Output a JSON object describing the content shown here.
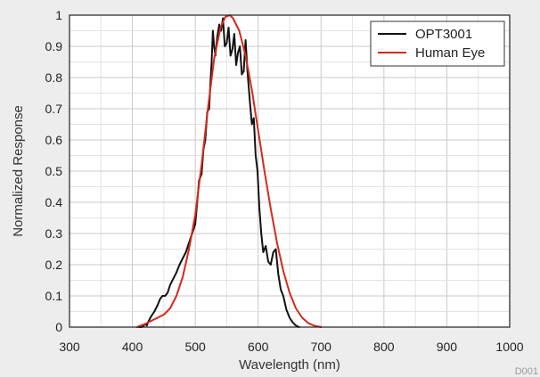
{
  "figure_id": "D001",
  "chart_data": {
    "type": "line",
    "title": "",
    "xlabel": "Wavelength (nm)",
    "ylabel": "Normalized Response",
    "xlim": [
      300,
      1000
    ],
    "ylim": [
      0,
      1
    ],
    "x_ticks": [
      300,
      400,
      500,
      600,
      700,
      800,
      900,
      1000
    ],
    "y_ticks": [
      0,
      0.1,
      0.2,
      0.3,
      0.4,
      0.5,
      0.6,
      0.7,
      0.8,
      0.9,
      1
    ],
    "x_minor_step": 50,
    "y_minor_step": 0.05,
    "grid": true,
    "legend_position": "top-right",
    "series": [
      {
        "name": "OPT3001",
        "color": "#111111",
        "points": [
          [
            410,
            0
          ],
          [
            415,
            0
          ],
          [
            418,
            0.005
          ],
          [
            420,
            0.01
          ],
          [
            423,
            0.005
          ],
          [
            426,
            0.02
          ],
          [
            430,
            0.035
          ],
          [
            435,
            0.05
          ],
          [
            440,
            0.07
          ],
          [
            444,
            0.09
          ],
          [
            448,
            0.1
          ],
          [
            452,
            0.1
          ],
          [
            456,
            0.11
          ],
          [
            460,
            0.135
          ],
          [
            465,
            0.155
          ],
          [
            470,
            0.175
          ],
          [
            475,
            0.2
          ],
          [
            480,
            0.22
          ],
          [
            485,
            0.24
          ],
          [
            490,
            0.27
          ],
          [
            495,
            0.3
          ],
          [
            500,
            0.33
          ],
          [
            503,
            0.4
          ],
          [
            506,
            0.47
          ],
          [
            510,
            0.49
          ],
          [
            513,
            0.57
          ],
          [
            516,
            0.6
          ],
          [
            519,
            0.69
          ],
          [
            522,
            0.7
          ],
          [
            524,
            0.78
          ],
          [
            526,
            0.85
          ],
          [
            528,
            0.95
          ],
          [
            530,
            0.9
          ],
          [
            532,
            0.87
          ],
          [
            535,
            0.93
          ],
          [
            538,
            0.97
          ],
          [
            541,
            0.95
          ],
          [
            544,
            0.99
          ],
          [
            547,
            0.9
          ],
          [
            550,
            0.91
          ],
          [
            553,
            0.96
          ],
          [
            556,
            0.87
          ],
          [
            559,
            0.89
          ],
          [
            562,
            0.94
          ],
          [
            565,
            0.84
          ],
          [
            568,
            0.88
          ],
          [
            571,
            0.9
          ],
          [
            574,
            0.81
          ],
          [
            577,
            0.82
          ],
          [
            580,
            0.92
          ],
          [
            583,
            0.82
          ],
          [
            587,
            0.72
          ],
          [
            590,
            0.65
          ],
          [
            593,
            0.67
          ],
          [
            596,
            0.55
          ],
          [
            599,
            0.5
          ],
          [
            602,
            0.38
          ],
          [
            605,
            0.3
          ],
          [
            608,
            0.24
          ],
          [
            612,
            0.26
          ],
          [
            616,
            0.21
          ],
          [
            620,
            0.2
          ],
          [
            624,
            0.24
          ],
          [
            628,
            0.25
          ],
          [
            632,
            0.17
          ],
          [
            636,
            0.12
          ],
          [
            640,
            0.1
          ],
          [
            645,
            0.055
          ],
          [
            650,
            0.03
          ],
          [
            655,
            0.015
          ],
          [
            660,
            0.005
          ],
          [
            665,
            0
          ]
        ]
      },
      {
        "name": "Human Eye",
        "color": "#d42a1c",
        "points": [
          [
            407,
            0
          ],
          [
            420,
            0.01
          ],
          [
            440,
            0.03
          ],
          [
            450,
            0.04
          ],
          [
            460,
            0.06
          ],
          [
            470,
            0.1
          ],
          [
            480,
            0.16
          ],
          [
            490,
            0.25
          ],
          [
            500,
            0.36
          ],
          [
            510,
            0.52
          ],
          [
            520,
            0.7
          ],
          [
            530,
            0.86
          ],
          [
            540,
            0.96
          ],
          [
            548,
            0.995
          ],
          [
            555,
            1
          ],
          [
            560,
            0.99
          ],
          [
            570,
            0.95
          ],
          [
            580,
            0.87
          ],
          [
            590,
            0.76
          ],
          [
            600,
            0.63
          ],
          [
            610,
            0.5
          ],
          [
            620,
            0.38
          ],
          [
            630,
            0.27
          ],
          [
            640,
            0.18
          ],
          [
            650,
            0.11
          ],
          [
            660,
            0.06
          ],
          [
            670,
            0.03
          ],
          [
            680,
            0.012
          ],
          [
            690,
            0.004
          ],
          [
            700,
            0
          ]
        ]
      }
    ]
  }
}
